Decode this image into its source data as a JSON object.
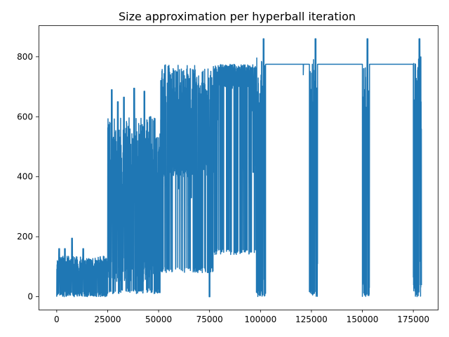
{
  "chart_data": {
    "type": "line",
    "title": "Size approximation per hyperball iteration",
    "xlabel": "",
    "ylabel": "",
    "xlim": [
      -8900,
      187000
    ],
    "ylim": [
      -43,
      905
    ],
    "grid": false,
    "line_color": "#1f77b4",
    "x_ticks": [
      {
        "value": 0,
        "label": "0"
      },
      {
        "value": 25000,
        "label": "25000"
      },
      {
        "value": 50000,
        "label": "50000"
      },
      {
        "value": 75000,
        "label": "75000"
      },
      {
        "value": 100000,
        "label": "100000"
      },
      {
        "value": 125000,
        "label": "125000"
      },
      {
        "value": 150000,
        "label": "150000"
      },
      {
        "value": 175000,
        "label": "175000"
      }
    ],
    "y_ticks": [
      {
        "value": 0,
        "label": "0"
      },
      {
        "value": 200,
        "label": "200"
      },
      {
        "value": 400,
        "label": "400"
      },
      {
        "value": 600,
        "label": "600"
      },
      {
        "value": 800,
        "label": "800"
      }
    ],
    "series": [
      {
        "name": "",
        "segments": [
          {
            "x_start": 0,
            "x_end": 25000,
            "low": 0,
            "high": 135,
            "spikes": [
              [
                1200,
                160
              ],
              [
                4000,
                160
              ],
              [
                7500,
                195
              ],
              [
                13000,
                160
              ],
              [
                20000,
                120
              ]
            ]
          },
          {
            "x_start": 25000,
            "x_end": 51000,
            "low": 50,
            "high": 600,
            "spikes": [
              [
                27000,
                690
              ],
              [
                30000,
                650
              ],
              [
                33000,
                665
              ],
              [
                38000,
                695
              ],
              [
                43000,
                685
              ],
              [
                46000,
                600
              ]
            ]
          },
          {
            "x_start": 51000,
            "x_end": 77000,
            "low": 400,
            "high": 775,
            "spikes": [
              [
                54000,
                160
              ],
              [
                60000,
                360
              ],
              [
                66000,
                330
              ],
              [
                69000,
                200
              ],
              [
                70000,
                90
              ],
              [
                75000,
                0
              ]
            ]
          },
          {
            "x_start": 77000,
            "x_end": 98000,
            "low": 700,
            "high": 775,
            "spikes": [
              [
                79000,
                590
              ],
              [
                86000,
                695
              ],
              [
                96000,
                620
              ],
              [
                96500,
                415
              ]
            ]
          },
          {
            "x_start": 98000,
            "x_end": 102500,
            "low": 0,
            "high": 800,
            "spikes": [
              [
                101500,
                860
              ]
            ]
          },
          {
            "x_start": 102500,
            "x_end": 124000,
            "low": 775,
            "high": 775,
            "spikes": [
              [
                121000,
                740
              ]
            ]
          },
          {
            "x_start": 124000,
            "x_end": 128000,
            "low": 0,
            "high": 800,
            "spikes": [
              [
                127000,
                860
              ]
            ]
          },
          {
            "x_start": 128000,
            "x_end": 150000,
            "low": 775,
            "high": 775,
            "spikes": []
          },
          {
            "x_start": 150000,
            "x_end": 153500,
            "low": 0,
            "high": 800,
            "spikes": [
              [
                152500,
                860
              ]
            ]
          },
          {
            "x_start": 153500,
            "x_end": 175000,
            "low": 775,
            "high": 775,
            "spikes": []
          },
          {
            "x_start": 175000,
            "x_end": 179000,
            "low": 0,
            "high": 800,
            "spikes": [
              [
                178000,
                860
              ]
            ]
          }
        ]
      }
    ]
  }
}
